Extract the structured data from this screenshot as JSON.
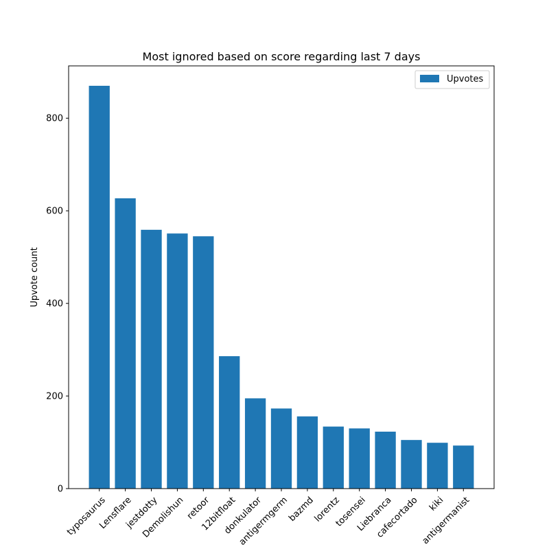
{
  "chart_data": {
    "type": "bar",
    "title": "Most ignored based on score regarding last 7 days",
    "xlabel": "",
    "ylabel": "Upvote count",
    "categories": [
      "typosaurus",
      "Lensflare",
      "jestdotty",
      "Demolishun",
      "retoor",
      "12bitfloat",
      "donkulator",
      "antigermgerm",
      "bazmd",
      "lorentz",
      "tosensei",
      "Liebranca",
      "cafecortado",
      "kiki",
      "antigermanist"
    ],
    "series": [
      {
        "name": "Upvotes",
        "values": [
          870,
          627,
          559,
          551,
          545,
          286,
          195,
          173,
          156,
          134,
          130,
          123,
          105,
          99,
          93
        ],
        "color": "#1f77b4"
      }
    ],
    "yticks": [
      0,
      200,
      400,
      600,
      800
    ],
    "ylim": [
      0,
      913
    ],
    "grid": false,
    "legend_position": "top-right",
    "xtick_rotation": 45
  }
}
